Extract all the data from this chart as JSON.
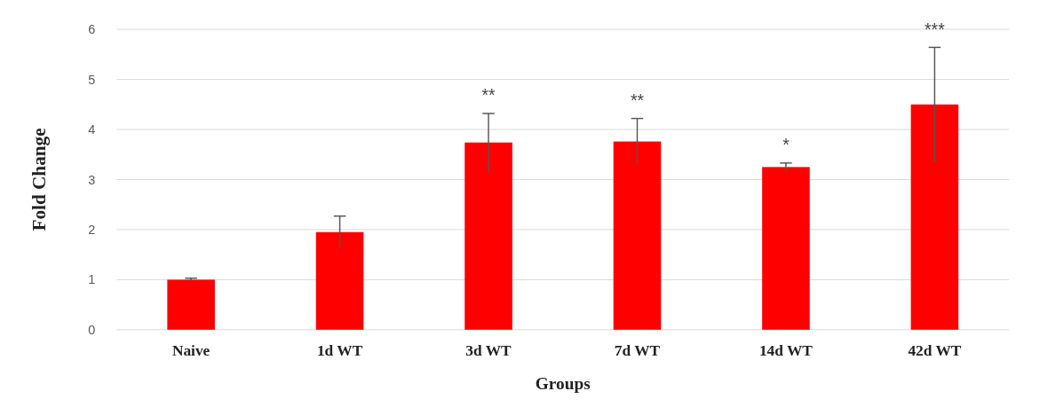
{
  "chart_data": {
    "type": "bar",
    "xlabel": "Groups",
    "ylabel": "Fold Change",
    "categories": [
      "Naive",
      "1d WT",
      "3d WT",
      "7d WT",
      "14d WT",
      "42d WT"
    ],
    "values": [
      1.0,
      1.95,
      3.74,
      3.76,
      3.25,
      4.5
    ],
    "errors": [
      0.03,
      0.32,
      0.58,
      0.46,
      0.08,
      1.14
    ],
    "color": "#ff0000",
    "ylim": [
      0,
      6
    ],
    "yticks": [
      0,
      1,
      2,
      3,
      4,
      5,
      6
    ],
    "grid": "y",
    "annotations": [
      "**",
      "**",
      "*",
      "***"
    ]
  }
}
